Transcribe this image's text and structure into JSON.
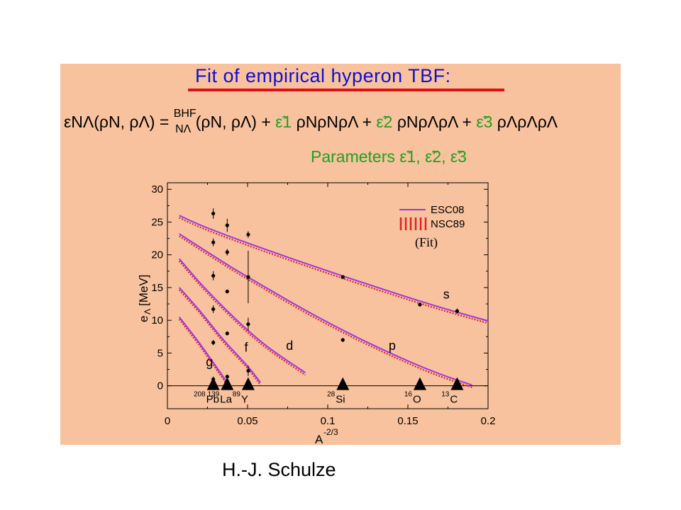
{
  "slide": {
    "title": "Fit of empirical hyperon TBF:",
    "author": "H.-J. Schulze",
    "formula": {
      "lhs": "εNΛ(ρN, ρΛ) = ",
      "bhf_sup": "BHF",
      "bhf_sub": "NΛ",
      "bhf_args": "(ρN, ρΛ) + ",
      "term1_coef": "ε̃1",
      "term1_rho": "ρNρNρΛ + ",
      "term2_coef": "ε̃2",
      "term2_rho": "ρNρΛρΛ + ",
      "term3_coef": "ε̃3",
      "term3_rho": "ρΛρΛρΛ"
    },
    "parameters_label": "Parameters ε̃1, ε̃2, ε̃3",
    "colors": {
      "title": "#1010c8",
      "underline": "#e01010",
      "panel": "#F8C29E",
      "green": "#20a020",
      "esc08": "#9a35e8",
      "nsc89": "#e02020"
    }
  },
  "chart_data": {
    "type": "line",
    "xlabel": "A",
    "xlabel_sup": "-2/3",
    "ylabel": "e",
    "ylabel_sub": "Λ",
    "ylabel_unit": "[MeV]",
    "xlim": [
      0,
      0.2
    ],
    "ylim": [
      -3.5,
      31
    ],
    "xticks": [
      "0",
      "0.05",
      "0.1",
      "0.15",
      "0.2"
    ],
    "yticks": [
      "0",
      "5",
      "10",
      "15",
      "20",
      "25",
      "30"
    ],
    "legend": {
      "position": "top-right",
      "entries": [
        "ESC08",
        "NSC89"
      ],
      "note": "(Fit)"
    },
    "series": [
      {
        "name": "ESC08",
        "color": "#9a35e8"
      },
      {
        "name": "NSC89",
        "color": "#e02020"
      }
    ],
    "shells": [
      {
        "label": "s",
        "x": [
          0.0074,
          0.023,
          0.05,
          0.08,
          0.11,
          0.14,
          0.17,
          0.2
        ],
        "y": [
          26.0,
          24.3,
          21.8,
          19.2,
          16.7,
          14.3,
          12.0,
          9.9
        ]
      },
      {
        "label": "p",
        "x": [
          0.0074,
          0.02,
          0.04,
          0.06,
          0.09,
          0.12,
          0.15,
          0.17,
          0.19
        ],
        "y": [
          23.2,
          21.2,
          18.1,
          15.2,
          11.0,
          7.2,
          3.8,
          1.8,
          0.1
        ]
      },
      {
        "label": "d",
        "x": [
          0.0074,
          0.02,
          0.035,
          0.05,
          0.065,
          0.086
        ],
        "y": [
          19.4,
          15.8,
          12.0,
          8.5,
          5.5,
          2.0
        ]
      },
      {
        "label": "f",
        "x": [
          0.0074,
          0.02,
          0.035,
          0.05,
          0.058
        ],
        "y": [
          15.0,
          11.5,
          7.0,
          3.0,
          0.5
        ]
      },
      {
        "label": "g",
        "x": [
          0.0074,
          0.02,
          0.033,
          0.038
        ],
        "y": [
          10.5,
          6.5,
          2.0,
          0.2
        ]
      }
    ],
    "shell_label_positions": [
      {
        "label": "s",
        "x": 0.172,
        "y": 13.3
      },
      {
        "label": "p",
        "x": 0.138,
        "y": 5.5
      },
      {
        "label": "d",
        "x": 0.074,
        "y": 5.5
      },
      {
        "label": "f",
        "x": 0.048,
        "y": 5.2
      },
      {
        "label": "g",
        "x": 0.024,
        "y": 3.0
      }
    ],
    "data_points": [
      {
        "x": 0.0286,
        "y": 26.3,
        "err": 0.8
      },
      {
        "x": 0.0286,
        "y": 21.9,
        "err": 0.6
      },
      {
        "x": 0.0286,
        "y": 16.8,
        "err": 0.7
      },
      {
        "x": 0.0286,
        "y": 11.7,
        "err": 0.6
      },
      {
        "x": 0.0286,
        "y": 6.6,
        "err": 0.4
      },
      {
        "x": 0.0286,
        "y": 1.0,
        "err": 0.4
      },
      {
        "x": 0.0373,
        "y": 24.5,
        "err": 1.0
      },
      {
        "x": 0.0373,
        "y": 20.4,
        "err": 0.5
      },
      {
        "x": 0.0373,
        "y": 14.4,
        "err": 0.3
      },
      {
        "x": 0.0373,
        "y": 8.0,
        "err": 0.3
      },
      {
        "x": 0.0373,
        "y": 1.4,
        "err": 0.3
      },
      {
        "x": 0.0504,
        "y": 23.1,
        "err": 0.5
      },
      {
        "x": 0.0504,
        "y": 16.6,
        "err": 4.0
      },
      {
        "x": 0.0504,
        "y": 9.4,
        "err": 1.0
      },
      {
        "x": 0.0504,
        "y": 2.3,
        "err": 0.8
      },
      {
        "x": 0.1094,
        "y": 16.6,
        "err": 0.3
      },
      {
        "x": 0.1094,
        "y": 7.0,
        "err": 0.3
      },
      {
        "x": 0.1575,
        "y": 12.4,
        "err": 0.3
      },
      {
        "x": 0.1807,
        "y": 11.4,
        "err": 0.4
      }
    ],
    "nuclei": [
      {
        "x": 0.0286,
        "mass": "208",
        "sym": "Pb"
      },
      {
        "x": 0.0373,
        "mass": "139",
        "sym": "La"
      },
      {
        "x": 0.0504,
        "mass": "89",
        "sym": "Y"
      },
      {
        "x": 0.1094,
        "mass": "28",
        "sym": "Si"
      },
      {
        "x": 0.1575,
        "mass": "16",
        "sym": "O"
      },
      {
        "x": 0.1807,
        "mass": "13",
        "sym": "C"
      }
    ]
  }
}
